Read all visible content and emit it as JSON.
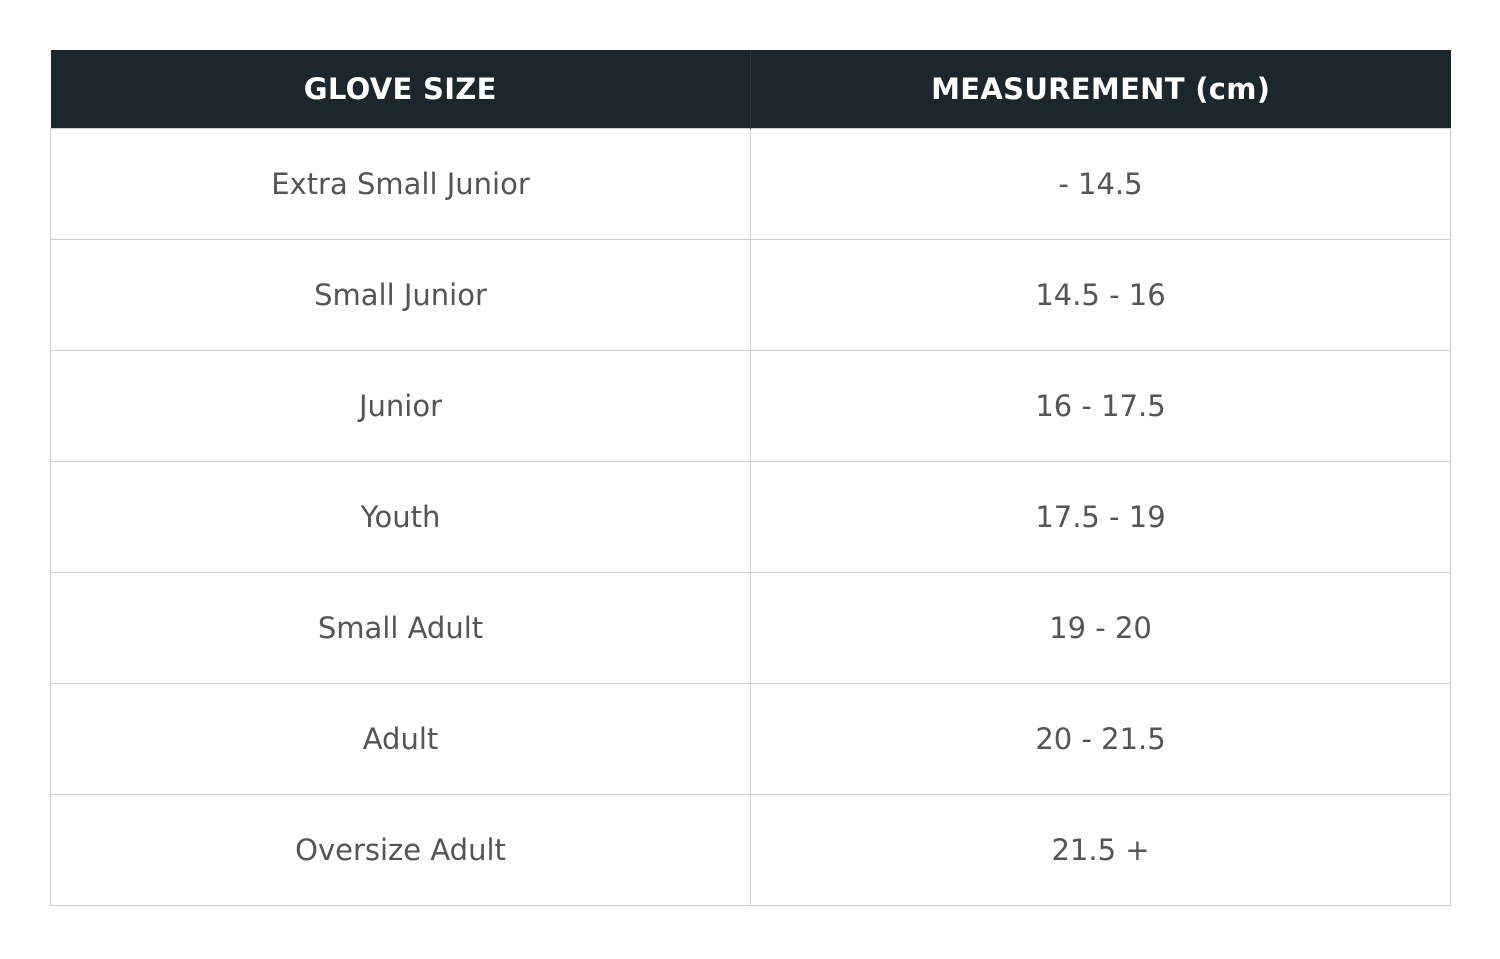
{
  "header": {
    "col1": "GLOVE SIZE",
    "col2": "MEASUREMENT (cm)"
  },
  "colors": {
    "header_bg": "#1c272d",
    "header_text": "#ffffff",
    "cell_text": "#555555",
    "border": "#cfcfcf"
  },
  "rows": [
    {
      "size": "Extra Small Junior",
      "measurement": "- 14.5"
    },
    {
      "size": "Small Junior",
      "measurement": "14.5 - 16"
    },
    {
      "size": "Junior",
      "measurement": "16 - 17.5"
    },
    {
      "size": "Youth",
      "measurement": "17.5 - 19"
    },
    {
      "size": "Small Adult",
      "measurement": "19 - 20"
    },
    {
      "size": "Adult",
      "measurement": "20 - 21.5"
    },
    {
      "size": "Oversize Adult",
      "measurement": "21.5 +"
    }
  ]
}
